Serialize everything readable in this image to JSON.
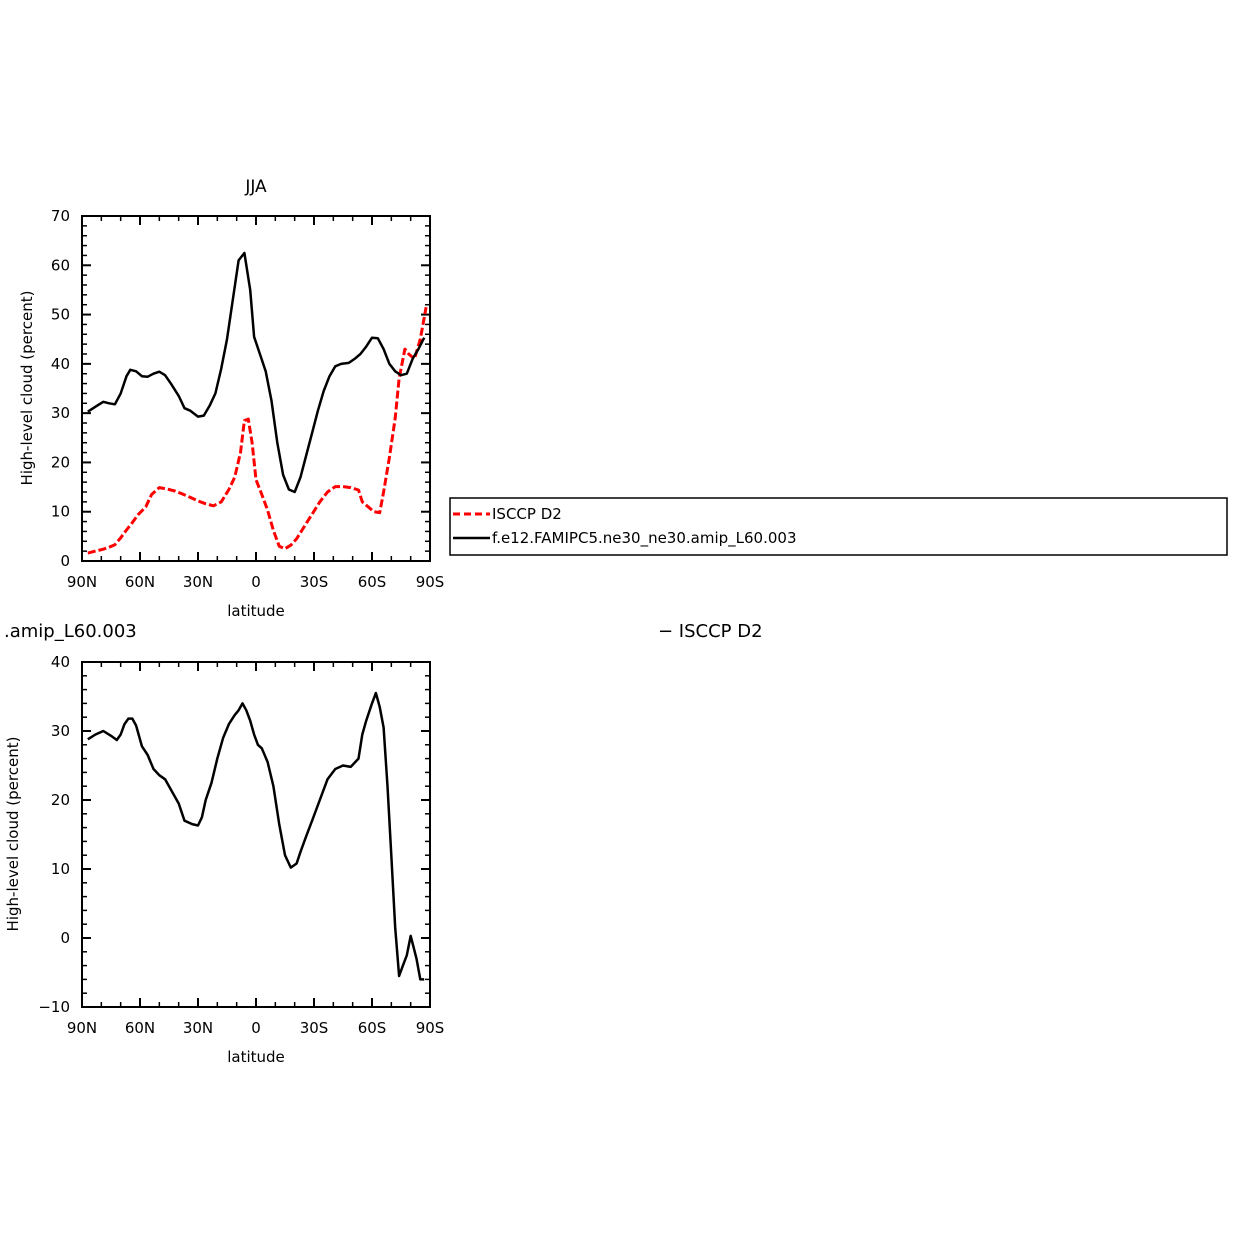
{
  "colors": {
    "obs": "#ff0000",
    "model": "#000000",
    "axis": "#000000"
  },
  "legend": {
    "items": [
      {
        "label": "ISCCP D2",
        "color": "#ff0000",
        "dash": true
      },
      {
        "label": "f.e12.FAMIPC5.ne30_ne30.amip_L60.003",
        "color": "#000000",
        "dash": false
      }
    ]
  },
  "lower_title_left": ".amip_L60.003",
  "lower_title_right": "− ISCCP D2",
  "chart_data": [
    {
      "type": "line",
      "title": "JJA",
      "xlabel": "latitude",
      "ylabel": "High-level cloud (percent)",
      "xlim": [
        90,
        -90
      ],
      "ylim": [
        0,
        70
      ],
      "x_ticks": [
        90,
        60,
        30,
        0,
        -30,
        -60,
        -90
      ],
      "x_tick_labels": [
        "90N",
        "60N",
        "30N",
        "0",
        "30S",
        "60S",
        "90S"
      ],
      "y_ticks": [
        0,
        10,
        20,
        30,
        40,
        50,
        60,
        70
      ],
      "y_tick_labels": [
        "0",
        "10",
        "20",
        "30",
        "40",
        "50",
        "60",
        "70"
      ],
      "series": [
        {
          "name": "ISCCP D2",
          "style": "dashed",
          "x": [
            87,
            83,
            79,
            76,
            73,
            70,
            67,
            64,
            61,
            57,
            54,
            50,
            46,
            42,
            38,
            34,
            30,
            26,
            22,
            18,
            14,
            11,
            8,
            6,
            4,
            2,
            0,
            -3,
            -6,
            -9,
            -12,
            -15,
            -18,
            -21,
            -25,
            -29,
            -33,
            -37,
            -41,
            -45,
            -49,
            -53,
            -55,
            -58,
            -61,
            -64,
            -66,
            -69,
            -72,
            -74,
            -77,
            -79,
            -82,
            -85,
            -88
          ],
          "y": [
            1.6,
            2.0,
            2.4,
            2.8,
            3.3,
            4.7,
            6.3,
            7.8,
            9.4,
            11,
            13.5,
            14.9,
            14.6,
            14.2,
            13.6,
            12.9,
            12.2,
            11.6,
            11.2,
            12.0,
            14.5,
            17.0,
            22.0,
            28.5,
            28.8,
            24,
            16.5,
            13.5,
            10.3,
            6.2,
            3.0,
            2.5,
            3.2,
            4.5,
            7.0,
            9.5,
            12.0,
            14.0,
            15.1,
            15.1,
            14.9,
            14.4,
            12.0,
            11.0,
            10.0,
            9.8,
            14.0,
            21.0,
            29.0,
            37.0,
            43.0,
            42.0,
            41.0,
            45.0,
            51.5
          ]
        },
        {
          "name": "f.e12.FAMIPC5.ne30_ne30.amip_L60.003",
          "style": "solid",
          "x": [
            87,
            83,
            79,
            76,
            73,
            70,
            67,
            65,
            62,
            59,
            56,
            53,
            50,
            47,
            44,
            40,
            37,
            34,
            30,
            27,
            24,
            21,
            18,
            15,
            12,
            9,
            6,
            3,
            1,
            -2,
            -5,
            -8,
            -11,
            -14,
            -17,
            -20,
            -23,
            -26,
            -29,
            -32,
            -35,
            -38,
            -41,
            -44,
            -48,
            -51,
            -54,
            -57,
            -60,
            -63,
            -66,
            -69,
            -72,
            -75,
            -78,
            -81,
            -84,
            -87
          ],
          "y": [
            30.3,
            31.3,
            32.3,
            32.0,
            31.8,
            34.0,
            37.5,
            38.8,
            38.5,
            37.5,
            37.4,
            38.0,
            38.4,
            37.7,
            36.0,
            33.5,
            31.0,
            30.5,
            29.3,
            29.5,
            31.5,
            34.0,
            39.0,
            45.0,
            53.0,
            61.0,
            62.5,
            55.0,
            45.5,
            42.0,
            38.5,
            32.5,
            24.0,
            17.5,
            14.5,
            14.0,
            17.0,
            21.5,
            26.0,
            30.5,
            34.5,
            37.5,
            39.5,
            40.0,
            40.2,
            41.0,
            42.0,
            43.5,
            45.3,
            45.2,
            43.0,
            40.0,
            38.5,
            37.7,
            38.0,
            41.0,
            43.0,
            45.3
          ]
        }
      ]
    },
    {
      "type": "line",
      "title": "",
      "xlabel": "latitude",
      "ylabel": "High-level cloud (percent)",
      "xlim": [
        90,
        -90
      ],
      "ylim": [
        -10,
        40
      ],
      "x_ticks": [
        90,
        60,
        30,
        0,
        -30,
        -60,
        -90
      ],
      "x_tick_labels": [
        "90N",
        "60N",
        "30N",
        "0",
        "30S",
        "60S",
        "90S"
      ],
      "y_ticks": [
        -10,
        0,
        10,
        20,
        30,
        40
      ],
      "y_tick_labels": [
        "−10",
        "0",
        "10",
        "20",
        "30",
        "40"
      ],
      "series": [
        {
          "style": "solid",
          "x": [
            87,
            83,
            79,
            75,
            72,
            70,
            68,
            66,
            64,
            62,
            59,
            56,
            53,
            50,
            47,
            44,
            40,
            37,
            33,
            30,
            28,
            26,
            23,
            20,
            17,
            14,
            11,
            9,
            7,
            5,
            3,
            1,
            -1,
            -3,
            -6,
            -9,
            -12,
            -15,
            -18,
            -21,
            -23,
            -26,
            -29,
            -33,
            -37,
            -41,
            -45,
            -49,
            -53,
            -55,
            -57,
            -60,
            -62,
            -64,
            -66,
            -68,
            -70,
            -72,
            -74,
            -76,
            -78,
            -80,
            -83,
            -85,
            -87
          ],
          "y": [
            28.8,
            29.5,
            30.0,
            29.3,
            28.7,
            29.5,
            31.0,
            31.8,
            31.8,
            30.8,
            27.8,
            26.5,
            24.5,
            23.6,
            23.0,
            21.5,
            19.5,
            17.0,
            16.5,
            16.3,
            17.5,
            20.0,
            22.5,
            26.0,
            29.0,
            31.0,
            32.3,
            33.0,
            34.0,
            33.0,
            31.5,
            29.5,
            28.0,
            27.5,
            25.5,
            22.0,
            16.5,
            12.0,
            10.2,
            10.8,
            12.5,
            14.8,
            17.0,
            20.0,
            23.0,
            24.5,
            25.0,
            24.8,
            26.0,
            29.5,
            31.5,
            34.0,
            35.5,
            33.5,
            30.5,
            22.0,
            12.0,
            1.5,
            -5.5,
            -4.0,
            -2.5,
            0.3,
            -3.0,
            -6.0,
            -6.0
          ]
        }
      ]
    }
  ]
}
